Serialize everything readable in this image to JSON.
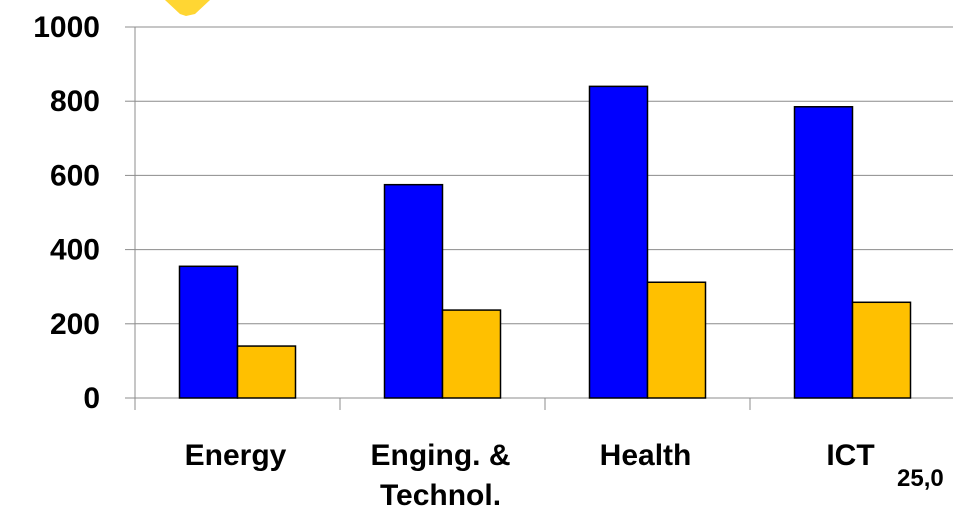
{
  "chart_data": {
    "type": "bar",
    "categories": [
      "Energy",
      "Enging. & Technol.",
      "Health",
      "ICT"
    ],
    "category_label_lines": [
      [
        "Energy"
      ],
      [
        "Enging. &",
        "Technol."
      ],
      [
        "Health"
      ],
      [
        "ICT"
      ]
    ],
    "series": [
      {
        "values": [
          355,
          575,
          840,
          785
        ],
        "color": "#0000ff"
      },
      {
        "values": [
          140,
          237,
          312,
          258
        ],
        "color": "#ffc000"
      }
    ],
    "yticks": [
      "0",
      "200",
      "400",
      "600",
      "800",
      "1000"
    ],
    "ylim": [
      0,
      1000
    ],
    "grid": true,
    "legend": "none",
    "title": "",
    "xlabel": "",
    "ylabel": ""
  },
  "cropped_text": "25,0",
  "decoration": {
    "star_color": "#ffd633"
  }
}
